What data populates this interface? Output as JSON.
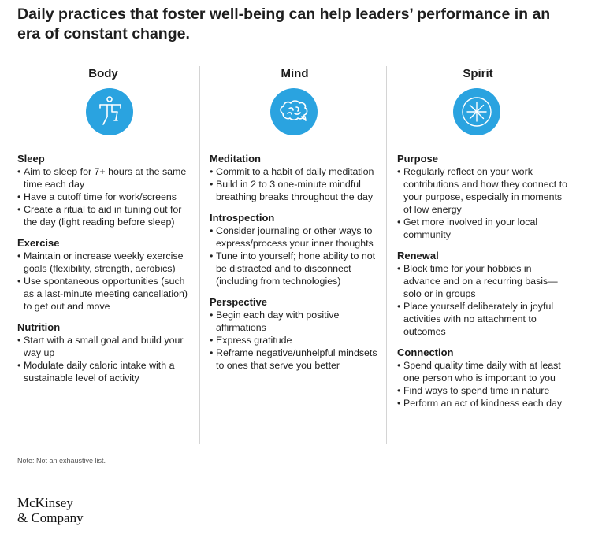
{
  "title": "Daily practices that foster well-being can help leaders’ performance in an era of constant change.",
  "columns": [
    {
      "heading": "Body",
      "icon": "body-balance-icon",
      "sections": [
        {
          "title": "Sleep",
          "items": [
            "Aim to sleep for 7+ hours at the same time each day",
            "Have a cutoff time for work/screens",
            "Create a ritual to aid in tuning out for the day (light reading before sleep)"
          ]
        },
        {
          "title": "Exercise",
          "items": [
            "Maintain or increase weekly exercise goals (flexibility, strength, aerobics)",
            "Use spontaneous opportunities (such as a last-minute meeting cancellation) to get out and move"
          ]
        },
        {
          "title": "Nutrition",
          "items": [
            "Start with a small goal and build your way up",
            "Modulate daily caloric intake with a sustainable level of activity"
          ]
        }
      ]
    },
    {
      "heading": "Mind",
      "icon": "brain-speech-icon",
      "sections": [
        {
          "title": "Meditation",
          "items": [
            "Commit to a habit of daily meditation",
            "Build in 2 to 3 one-minute mindful breathing breaks throughout the day"
          ]
        },
        {
          "title": "Introspection",
          "items": [
            "Consider journaling or other ways to express/process your inner thoughts",
            "Tune into yourself; hone ability to not be distracted and to disconnect (including from technologies)"
          ]
        },
        {
          "title": "Perspective",
          "items": [
            "Begin each day with positive affirmations",
            "Express gratitude",
            "Reframe negative/unhelpful mindsets to ones that serve you better"
          ]
        }
      ]
    },
    {
      "heading": "Spirit",
      "icon": "starburst-icon",
      "sections": [
        {
          "title": "Purpose",
          "items": [
            "Regularly reflect on your work contributions and how they connect to your purpose, especially in moments of low energy",
            "Get more involved in your local community"
          ]
        },
        {
          "title": "Renewal",
          "items": [
            "Block time for your hobbies in advance and on a recurring basis—solo or in groups",
            "Place yourself deliberately in joyful activities with no attachment to outcomes"
          ]
        },
        {
          "title": "Connection",
          "items": [
            "Spend quality time daily with at least one person who is important to you",
            "Find ways to spend time in nature",
            "Perform an act of kindness each day"
          ]
        }
      ]
    }
  ],
  "note": "Note: Not an exhaustive list.",
  "logo": {
    "line1": "McKinsey",
    "line2": "& Company"
  },
  "colors": {
    "accent": "#2aa3e0",
    "divider": "#d4d4d4",
    "text": "#1a1a1a"
  }
}
